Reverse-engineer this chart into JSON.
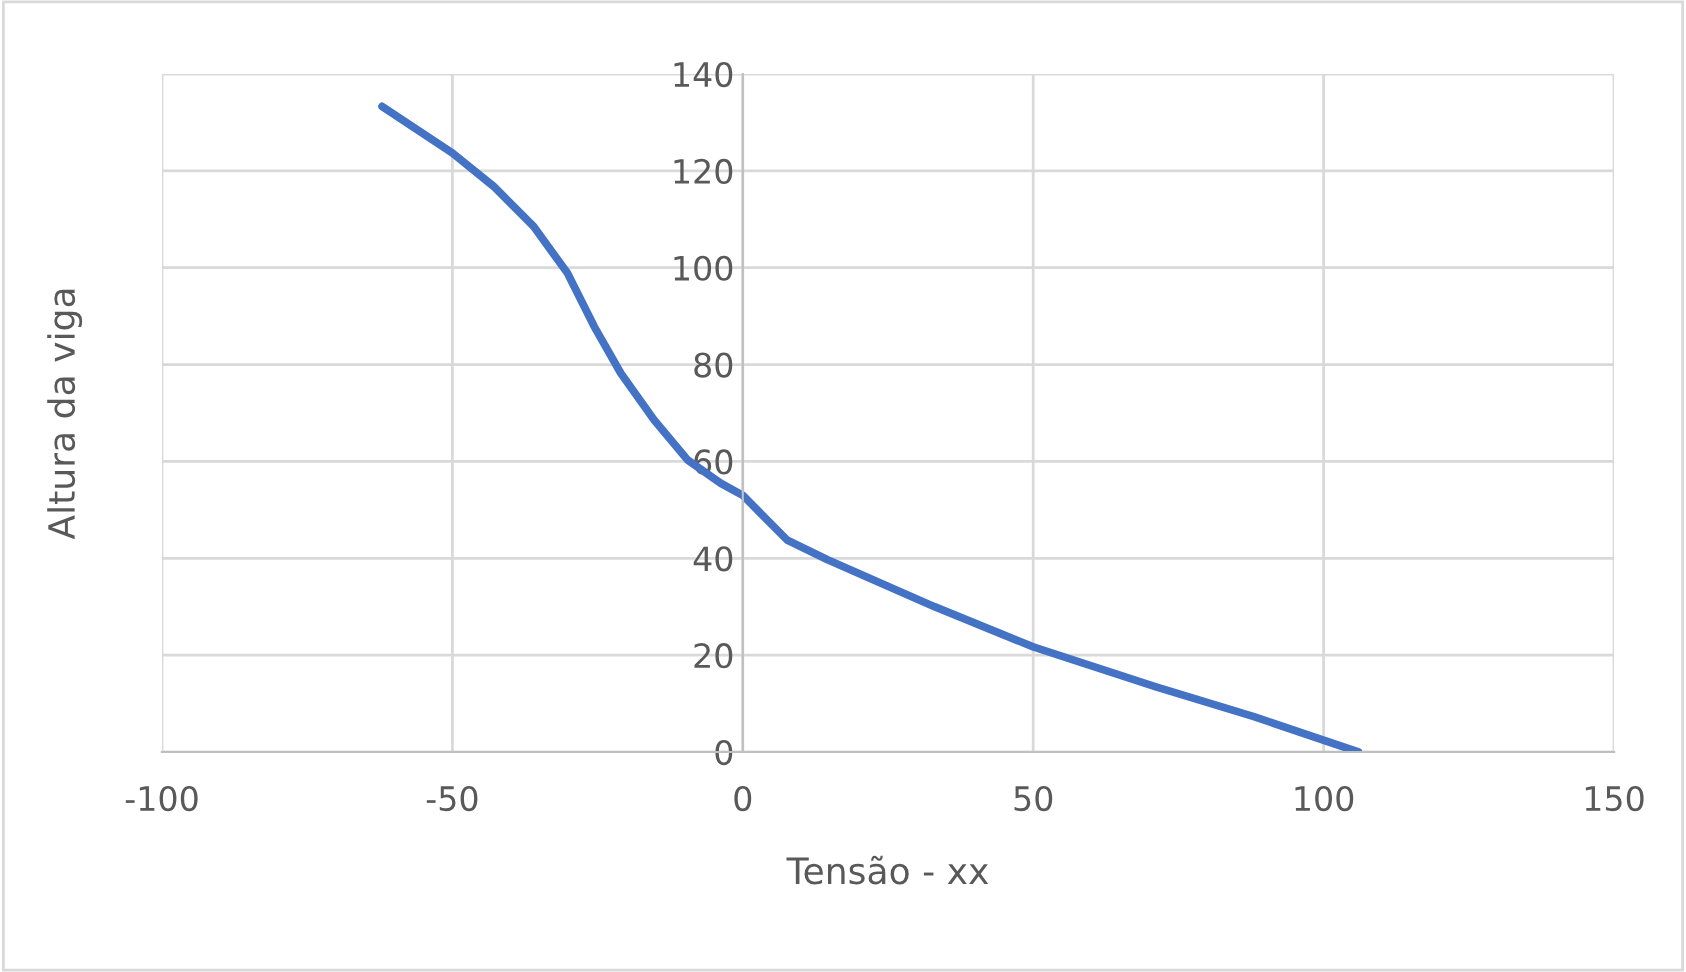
{
  "chart_data": {
    "type": "line",
    "xlabel": "Tensão - xx",
    "ylabel": "Altura da viga",
    "series": [
      {
        "color": "#4472c4",
        "x": [
          -62.1,
          -50,
          -42.9,
          -36,
          -30.2,
          -25.6,
          -21,
          -15.3,
          -9.5,
          -3.8,
          0,
          7.7,
          14.6,
          33,
          50,
          71,
          88,
          106
        ],
        "values": [
          133.3,
          123.7,
          116.8,
          108.5,
          98.9,
          87.9,
          78.2,
          68.6,
          60.3,
          55.5,
          53,
          43.7,
          39.7,
          30,
          21.7,
          13.5,
          7.3,
          0
        ]
      }
    ],
    "xlim": [
      -100,
      150
    ],
    "xticks": [
      -100,
      -50,
      0,
      50,
      100,
      150
    ],
    "ylim": [
      0,
      140
    ],
    "yticks": [
      0,
      20,
      40,
      60,
      80,
      100,
      120,
      140
    ],
    "grid": true,
    "legend": false,
    "marker": "none",
    "line_style": "solid"
  }
}
